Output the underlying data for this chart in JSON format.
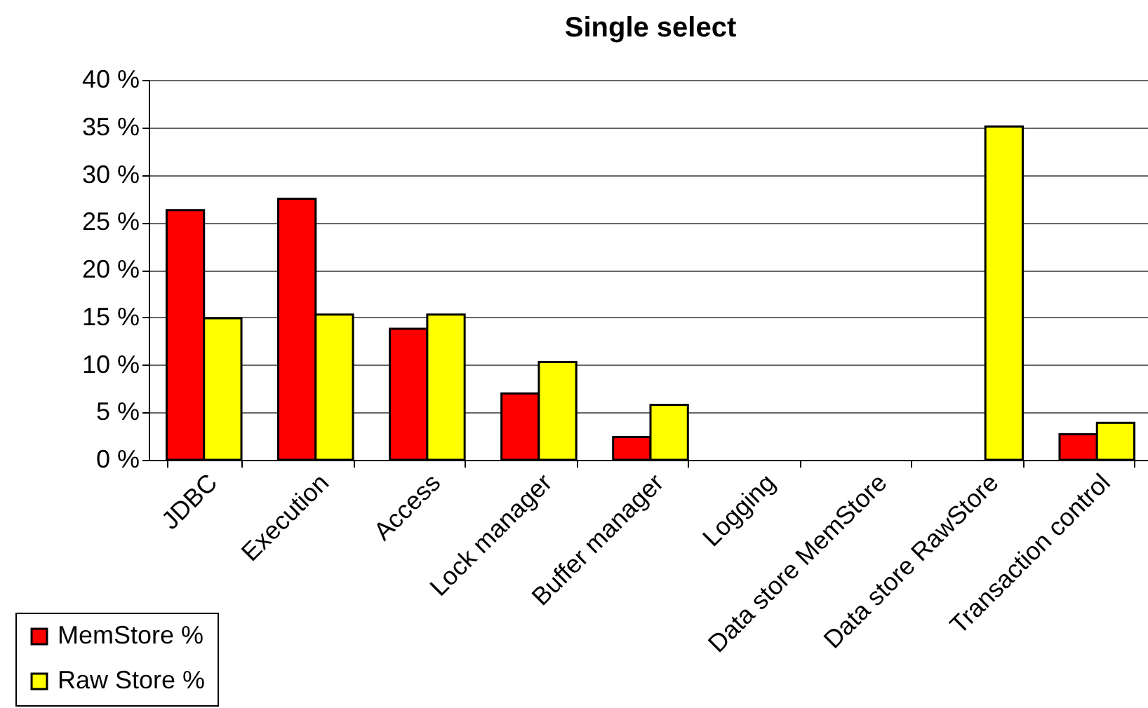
{
  "chart_data": {
    "type": "bar",
    "title": "Single select",
    "categories": [
      "JDBC",
      "Execution",
      "Access",
      "Lock manager",
      "Buffer manager",
      "Logging",
      "Data store MemStore",
      "Data store RawStore",
      "Transaction control"
    ],
    "series": [
      {
        "name": "MemStore %",
        "color": "#ff0000",
        "values": [
          26.3,
          27.5,
          13.8,
          7.0,
          2.4,
          null,
          null,
          null,
          2.7
        ]
      },
      {
        "name": "Raw Store %",
        "color": "#ffff00",
        "values": [
          14.9,
          15.3,
          15.3,
          10.3,
          5.8,
          null,
          null,
          35.1,
          3.9
        ]
      }
    ],
    "ylim": [
      0,
      40
    ],
    "yticks": [
      {
        "value": 0,
        "label": "0 %"
      },
      {
        "value": 5,
        "label": "5 %"
      },
      {
        "value": 10,
        "label": "10 %"
      },
      {
        "value": 15,
        "label": "15 %"
      },
      {
        "value": 20,
        "label": "20 %"
      },
      {
        "value": 25,
        "label": "25 %"
      },
      {
        "value": 30,
        "label": "30 %"
      },
      {
        "value": 35,
        "label": "35 %"
      },
      {
        "value": 40,
        "label": "40 %"
      }
    ],
    "grid": "y",
    "legend": "bottom left"
  }
}
